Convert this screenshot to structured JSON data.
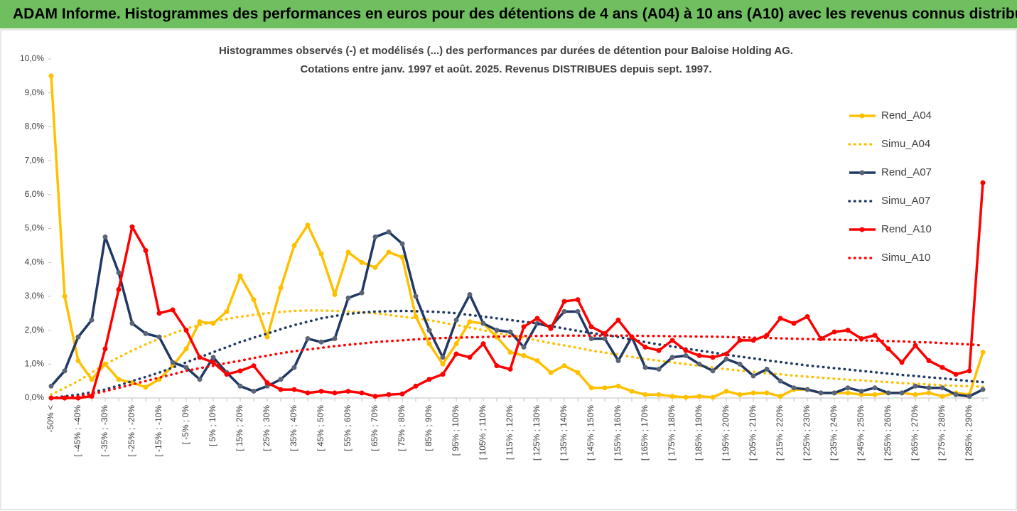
{
  "header": {
    "title": "ADAM Informe. Histogrammes des performances en euros pour des détentions de 4 ans (A04) à 10 ans (A10) avec les revenus connus distribués"
  },
  "chart_data": {
    "type": "line",
    "title": [
      "Histogrammes observés (-) et modélisés (...) des performances par durées de détention pour Baloise Holding AG.",
      "Cotations entre janv. 1997 et août. 2025. Revenus DISTRIBUES depuis sept. 1997."
    ],
    "categories": [
      "-50% <",
      null,
      "[ -45% ; -40%",
      null,
      "[ -35% ; -30%",
      null,
      "[ -25% ; -20%",
      null,
      "[ -15% ; -10%",
      null,
      "[ -5% ; 0%",
      null,
      "[ 5% ; 10%",
      null,
      "[ 15% ; 20%",
      null,
      "[ 25% ; 30%",
      null,
      "[ 35% ; 40%",
      null,
      "[ 45% ; 50%",
      null,
      "[ 55% ; 60%",
      null,
      "[ 65% ; 70%",
      null,
      "[ 75% ; 80%",
      null,
      "[ 85% ; 90%",
      null,
      "[ 95% ; 100%",
      null,
      "[ 105% ; 110%",
      null,
      "[ 115% ; 120%",
      null,
      "[ 125% ; 130%",
      null,
      "[ 135% ; 140%",
      null,
      "[ 145% ; 150%",
      null,
      "[ 155% ; 160%",
      null,
      "[ 165% ; 170%",
      null,
      "[ 175% ; 180%",
      null,
      "[ 185% ; 190%",
      null,
      "[ 195% ; 200%",
      null,
      "[ 205% ; 210%",
      null,
      "[ 215% ; 220%",
      null,
      "[ 225% ; 230%",
      null,
      "[ 235% ; 240%",
      null,
      "[ 245% ; 250%",
      null,
      "[ 255% ; 260%",
      null,
      "[ 265% ; 270%",
      null,
      "[ 275% ; 280%",
      null,
      "[ 285% ; 290%",
      null
    ],
    "ylim": [
      0,
      10
    ],
    "yticks": [
      {
        "value": 0,
        "label": "0,0%"
      },
      {
        "value": 1,
        "label": "1,0%"
      },
      {
        "value": 2,
        "label": "2,0%"
      },
      {
        "value": 3,
        "label": "3,0%"
      },
      {
        "value": 4,
        "label": "4,0%"
      },
      {
        "value": 5,
        "label": "5,0%"
      },
      {
        "value": 6,
        "label": "6,0%"
      },
      {
        "value": 7,
        "label": "7,0%"
      },
      {
        "value": 8,
        "label": "8,0%"
      },
      {
        "value": 9,
        "label": "9,0%"
      },
      {
        "value": 10,
        "label": "10,0%"
      }
    ],
    "legend": "right",
    "series": [
      {
        "name": "Rend_A04",
        "color": "#ffc000",
        "linestyle": "solid",
        "marker": true,
        "values": [
          9.5,
          3.0,
          1.1,
          0.55,
          1.0,
          0.55,
          0.45,
          0.32,
          0.55,
          0.95,
          1.45,
          2.25,
          2.2,
          2.55,
          3.6,
          2.9,
          1.8,
          3.25,
          4.5,
          5.1,
          4.25,
          3.05,
          4.3,
          4.0,
          3.85,
          4.3,
          4.15,
          2.4,
          1.6,
          1.0,
          1.6,
          2.25,
          2.2,
          1.8,
          1.35,
          1.25,
          1.1,
          0.75,
          0.95,
          0.75,
          0.3,
          0.3,
          0.35,
          0.2,
          0.1,
          0.1,
          0.05,
          0.02,
          0.05,
          0.02,
          0.2,
          0.1,
          0.15,
          0.15,
          0.05,
          0.25,
          0.25,
          0.15,
          0.15,
          0.15,
          0.1,
          0.1,
          0.15,
          0.15,
          0.1,
          0.15,
          0.05,
          0.15,
          0.1,
          1.35
        ]
      },
      {
        "name": "Simu_A04",
        "color": "#ffc000",
        "linestyle": "dotted",
        "marker": false,
        "values": [
          0.1,
          0.3,
          0.5,
          0.75,
          1.0,
          1.2,
          1.4,
          1.58,
          1.75,
          1.9,
          2.05,
          2.15,
          2.25,
          2.33,
          2.4,
          2.45,
          2.5,
          2.54,
          2.57,
          2.58,
          2.58,
          2.57,
          2.55,
          2.53,
          2.5,
          2.45,
          2.4,
          2.35,
          2.3,
          2.22,
          2.15,
          2.08,
          2.0,
          1.92,
          1.85,
          1.78,
          1.7,
          1.62,
          1.55,
          1.48,
          1.4,
          1.34,
          1.28,
          1.21,
          1.15,
          1.1,
          1.05,
          1.0,
          0.95,
          0.9,
          0.85,
          0.81,
          0.77,
          0.73,
          0.7,
          0.66,
          0.63,
          0.6,
          0.57,
          0.54,
          0.52,
          0.49,
          0.47,
          0.44,
          0.42,
          0.4,
          0.38,
          0.36,
          0.35,
          0.33
        ]
      },
      {
        "name": "Rend_A07",
        "color": "#1f3864",
        "linestyle": "solid",
        "marker": true,
        "values": [
          0.35,
          0.8,
          1.8,
          2.3,
          4.75,
          3.7,
          2.2,
          1.9,
          1.8,
          1.05,
          0.9,
          0.55,
          1.2,
          0.75,
          0.35,
          0.2,
          0.35,
          0.55,
          0.9,
          1.75,
          1.65,
          1.75,
          2.95,
          3.1,
          4.75,
          4.9,
          4.55,
          3.0,
          2.0,
          1.2,
          2.3,
          3.05,
          2.2,
          2.0,
          1.95,
          1.5,
          2.2,
          2.1,
          2.55,
          2.55,
          1.75,
          1.75,
          1.1,
          1.8,
          0.9,
          0.85,
          1.2,
          1.25,
          1.0,
          0.8,
          1.15,
          1.0,
          0.65,
          0.85,
          0.5,
          0.3,
          0.25,
          0.15,
          0.15,
          0.3,
          0.2,
          0.3,
          0.15,
          0.15,
          0.35,
          0.3,
          0.3,
          0.1,
          0.05,
          0.25
        ]
      },
      {
        "name": "Simu_A07",
        "color": "#1f3864",
        "linestyle": "dotted",
        "marker": false,
        "values": [
          0.0,
          0.05,
          0.1,
          0.17,
          0.25,
          0.37,
          0.5,
          0.62,
          0.75,
          0.9,
          1.05,
          1.2,
          1.35,
          1.5,
          1.65,
          1.78,
          1.9,
          2.03,
          2.15,
          2.25,
          2.35,
          2.42,
          2.48,
          2.52,
          2.55,
          2.56,
          2.57,
          2.56,
          2.55,
          2.53,
          2.5,
          2.45,
          2.4,
          2.35,
          2.3,
          2.25,
          2.2,
          2.12,
          2.05,
          1.98,
          1.92,
          1.86,
          1.8,
          1.72,
          1.65,
          1.58,
          1.52,
          1.46,
          1.4,
          1.34,
          1.28,
          1.22,
          1.17,
          1.11,
          1.06,
          1.01,
          0.96,
          0.92,
          0.88,
          0.84,
          0.8,
          0.76,
          0.72,
          0.68,
          0.65,
          0.61,
          0.58,
          0.54,
          0.5,
          0.47
        ]
      },
      {
        "name": "Rend_A10",
        "color": "#ff0000",
        "linestyle": "solid",
        "marker": true,
        "values": [
          0.0,
          0.0,
          0.0,
          0.05,
          1.45,
          3.2,
          5.05,
          4.35,
          2.5,
          2.6,
          2.0,
          1.2,
          1.05,
          0.7,
          0.8,
          0.95,
          0.45,
          0.25,
          0.25,
          0.15,
          0.2,
          0.15,
          0.2,
          0.15,
          0.05,
          0.1,
          0.12,
          0.35,
          0.55,
          0.7,
          1.3,
          1.2,
          1.6,
          0.95,
          0.85,
          2.1,
          2.35,
          2.05,
          2.85,
          2.9,
          2.1,
          1.9,
          2.3,
          1.8,
          1.5,
          1.4,
          1.7,
          1.4,
          1.25,
          1.2,
          1.3,
          1.7,
          1.7,
          1.85,
          2.35,
          2.2,
          2.4,
          1.75,
          1.95,
          2.0,
          1.75,
          1.85,
          1.45,
          1.05,
          1.55,
          1.1,
          0.9,
          0.7,
          0.8,
          6.35
        ]
      },
      {
        "name": "Simu_A10",
        "color": "#ff0000",
        "linestyle": "dotted",
        "marker": false,
        "values": [
          0.0,
          0.02,
          0.05,
          0.12,
          0.2,
          0.3,
          0.4,
          0.5,
          0.6,
          0.7,
          0.8,
          0.88,
          0.95,
          1.03,
          1.1,
          1.18,
          1.25,
          1.32,
          1.38,
          1.43,
          1.48,
          1.53,
          1.57,
          1.61,
          1.65,
          1.68,
          1.7,
          1.73,
          1.75,
          1.77,
          1.78,
          1.79,
          1.8,
          1.81,
          1.82,
          1.83,
          1.83,
          1.84,
          1.84,
          1.84,
          1.84,
          1.84,
          1.84,
          1.84,
          1.83,
          1.83,
          1.82,
          1.82,
          1.81,
          1.81,
          1.8,
          1.79,
          1.78,
          1.77,
          1.76,
          1.75,
          1.74,
          1.73,
          1.72,
          1.71,
          1.7,
          1.69,
          1.68,
          1.67,
          1.65,
          1.64,
          1.62,
          1.6,
          1.58,
          1.55
        ]
      }
    ]
  }
}
